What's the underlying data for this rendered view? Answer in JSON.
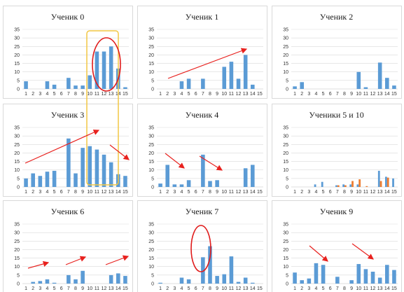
{
  "colors": {
    "bar_primary": "#5b9bd5",
    "bar_secondary": "#ed7d31",
    "grid": "#d9d9d9",
    "axis": "#bfbfbf",
    "panel_border": "#d9d9d9",
    "annotation_arrow": "#e8211e",
    "annotation_ellipse": "#e01b1b",
    "annotation_box": "#f2c744"
  },
  "chart_data": [
    {
      "type": "bar",
      "title": "Ученик 0",
      "categories": [
        "1",
        "2",
        "3",
        "4",
        "5",
        "6",
        "7",
        "8",
        "9",
        "10",
        "11",
        "12",
        "13",
        "14",
        "15"
      ],
      "series": [
        {
          "values": [
            4.5,
            0,
            0,
            4.5,
            2.5,
            0,
            6.5,
            2,
            2,
            8,
            22,
            22,
            25,
            12,
            1
          ]
        }
      ],
      "y_ticks": [
        "0",
        "5",
        "10",
        "15",
        "20",
        "25",
        "30",
        "35"
      ],
      "ylim": [
        0,
        35
      ],
      "grid": true
    },
    {
      "type": "bar",
      "title": "Ученик 1",
      "categories": [
        "1",
        "2",
        "3",
        "4",
        "5",
        "6",
        "7",
        "8",
        "9",
        "10",
        "11",
        "12",
        "13",
        "14",
        "15"
      ],
      "series": [
        {
          "values": [
            0,
            0,
            0,
            4.5,
            6,
            0,
            6,
            0,
            0,
            13,
            16,
            6,
            20,
            2.5,
            0
          ]
        }
      ],
      "y_ticks": [
        "0",
        "5",
        "10",
        "15",
        "20",
        "25",
        "30",
        "35"
      ],
      "ylim": [
        0,
        35
      ],
      "grid": true
    },
    {
      "type": "bar",
      "title": "Ученик 2",
      "categories": [
        "1",
        "2",
        "3",
        "4",
        "5",
        "6",
        "7",
        "8",
        "9",
        "10",
        "11",
        "12",
        "13",
        "14",
        "15"
      ],
      "series": [
        {
          "values": [
            1.5,
            4,
            0,
            0,
            0,
            0,
            0,
            0,
            0,
            10,
            1,
            0,
            15.5,
            6.5,
            2
          ]
        }
      ],
      "y_ticks": [
        "0",
        "5",
        "10",
        "15",
        "20",
        "25",
        "30",
        "35"
      ],
      "ylim": [
        0,
        35
      ],
      "grid": true
    },
    {
      "type": "bar",
      "title": "Ученик 3",
      "categories": [
        "1",
        "2",
        "3",
        "4",
        "5",
        "6",
        "7",
        "8",
        "9",
        "10",
        "11",
        "12",
        "13",
        "14",
        "15"
      ],
      "series": [
        {
          "values": [
            5,
            8,
            6.5,
            9,
            9.5,
            0,
            28.5,
            8,
            23,
            24,
            22,
            19,
            14.5,
            7.5,
            6.5
          ]
        }
      ],
      "y_ticks": [
        "0",
        "5",
        "10",
        "15",
        "20",
        "25",
        "30",
        "35"
      ],
      "ylim": [
        0,
        35
      ],
      "grid": true
    },
    {
      "type": "bar",
      "title": "Ученик 4",
      "categories": [
        "1",
        "2",
        "3",
        "4",
        "5",
        "6",
        "7",
        "8",
        "9",
        "10",
        "11",
        "12",
        "13",
        "14",
        "15"
      ],
      "series": [
        {
          "values": [
            2,
            13,
            1.5,
            1.5,
            4,
            0,
            19,
            3.5,
            4,
            0,
            0,
            0,
            11,
            13,
            0
          ]
        }
      ],
      "y_ticks": [
        "0",
        "5",
        "10",
        "15",
        "20",
        "25",
        "30",
        "35"
      ],
      "ylim": [
        0,
        35
      ],
      "grid": true
    },
    {
      "type": "bar",
      "title": "Ученики 5 и 10",
      "categories": [
        "1",
        "2",
        "3",
        "4",
        "5",
        "6",
        "7",
        "8",
        "9",
        "10",
        "11",
        "12",
        "13",
        "14",
        "15"
      ],
      "series": [
        {
          "values": [
            0,
            0,
            0,
            1.5,
            3,
            0,
            1,
            1.5,
            1.5,
            1.5,
            0,
            0,
            9.5,
            6,
            5
          ]
        },
        {
          "values": [
            0,
            0,
            0,
            0,
            0,
            0,
            1,
            1,
            3.5,
            4.5,
            0.5,
            0,
            3.5,
            5.5,
            0
          ]
        }
      ],
      "y_ticks": [
        "0",
        "5",
        "10",
        "15",
        "20",
        "25",
        "30",
        "35"
      ],
      "ylim": [
        0,
        35
      ],
      "grid": true
    },
    {
      "type": "bar",
      "title": "Ученик 6",
      "categories": [
        "1",
        "2",
        "3",
        "4",
        "5",
        "6",
        "7",
        "8",
        "9",
        "10",
        "11",
        "12",
        "13",
        "14",
        "15"
      ],
      "series": [
        {
          "values": [
            0,
            1,
            1.5,
            2.5,
            0.5,
            0,
            5,
            2.5,
            7.5,
            0,
            0,
            0,
            5,
            6,
            4.5
          ]
        }
      ],
      "y_ticks": [
        "0",
        "5",
        "10",
        "15",
        "20",
        "25",
        "30",
        "35"
      ],
      "ylim": [
        0,
        35
      ],
      "grid": true
    },
    {
      "type": "bar",
      "title": "Ученик 7",
      "categories": [
        "1",
        "2",
        "3",
        "4",
        "5",
        "6",
        "7",
        "8",
        "9",
        "10",
        "11",
        "12",
        "13",
        "14",
        "15"
      ],
      "series": [
        {
          "values": [
            0.5,
            0,
            0,
            3.5,
            2.5,
            0,
            15.5,
            22,
            4.5,
            5.5,
            16,
            1,
            3.5,
            0.5,
            0
          ]
        }
      ],
      "y_ticks": [
        "0",
        "5",
        "10",
        "15",
        "20",
        "25",
        "30",
        "35"
      ],
      "ylim": [
        0,
        35
      ],
      "grid": true
    },
    {
      "type": "bar",
      "title": "Ученик 9",
      "categories": [
        "1",
        "2",
        "3",
        "4",
        "5",
        "6",
        "7",
        "8",
        "9",
        "10",
        "11",
        "12",
        "13",
        "14",
        "15"
      ],
      "series": [
        {
          "values": [
            6.5,
            2,
            3,
            12,
            11,
            0,
            4,
            0,
            2,
            11.5,
            8.5,
            7,
            3.5,
            11,
            8
          ]
        }
      ],
      "y_ticks": [
        "0",
        "5",
        "10",
        "15",
        "20",
        "25",
        "30",
        "35"
      ],
      "ylim": [
        0,
        35
      ],
      "grid": true
    }
  ]
}
